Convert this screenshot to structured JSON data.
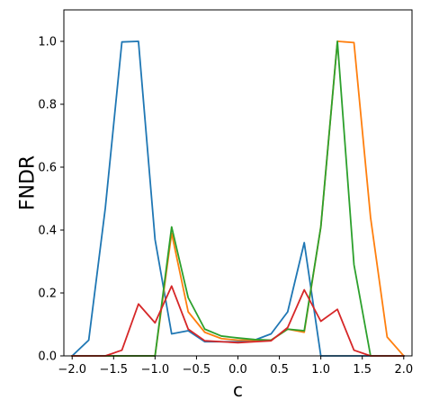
{
  "chart_data": {
    "type": "line",
    "title": "",
    "xlabel": "c",
    "ylabel": "FNDR",
    "xlim": [
      -2.1,
      2.1
    ],
    "ylim": [
      0.0,
      1.1
    ],
    "xticks": [
      -2.0,
      -1.5,
      -1.0,
      -0.5,
      0.0,
      0.5,
      1.0,
      1.5,
      2.0
    ],
    "xtick_labels": [
      "−2.0",
      "−1.5",
      "−1.0",
      "−0.5",
      "0.0",
      "0.5",
      "1.0",
      "1.5",
      "2.0"
    ],
    "yticks": [
      0.0,
      0.2,
      0.4,
      0.6,
      0.8,
      1.0
    ],
    "ytick_labels": [
      "0.0",
      "0.2",
      "0.4",
      "0.6",
      "0.8",
      "1.0"
    ],
    "grid": false,
    "legend": "none",
    "x": [
      -2.0,
      -1.8,
      -1.6,
      -1.4,
      -1.2,
      -1.0,
      -0.8,
      -0.6,
      -0.4,
      -0.2,
      0.0,
      0.2,
      0.4,
      0.6,
      0.8,
      1.0,
      1.2,
      1.4,
      1.6,
      1.8,
      2.0
    ],
    "series": [
      {
        "color": "#1f77b4",
        "values": [
          0.0,
          0.05,
          0.47,
          0.998,
          1.0,
          0.37,
          0.07,
          0.08,
          0.045,
          0.045,
          0.045,
          0.05,
          0.07,
          0.14,
          0.36,
          0.0,
          0.0,
          0.0,
          0.0,
          0.0,
          0.0
        ]
      },
      {
        "color": "#ff7f0e",
        "values": [
          0.0,
          0.0,
          0.0,
          0.0,
          0.0,
          0.0,
          0.39,
          0.14,
          0.075,
          0.055,
          0.05,
          0.05,
          0.05,
          0.085,
          0.075,
          0.41,
          1.0,
          0.996,
          0.44,
          0.06,
          0.0
        ]
      },
      {
        "color": "#2ca02c",
        "values": [
          0.0,
          0.0,
          0.0,
          0.0,
          0.0,
          0.0,
          0.41,
          0.185,
          0.085,
          0.063,
          0.057,
          0.052,
          0.05,
          0.085,
          0.08,
          0.41,
          1.0,
          0.29,
          0.0,
          0.0,
          0.0
        ]
      },
      {
        "color": "#d62728",
        "values": [
          0.0,
          0.0,
          0.0,
          0.018,
          0.165,
          0.105,
          0.222,
          0.085,
          0.048,
          0.045,
          0.042,
          0.045,
          0.048,
          0.09,
          0.21,
          0.11,
          0.148,
          0.018,
          0.0,
          0.0,
          0.0
        ]
      }
    ]
  }
}
